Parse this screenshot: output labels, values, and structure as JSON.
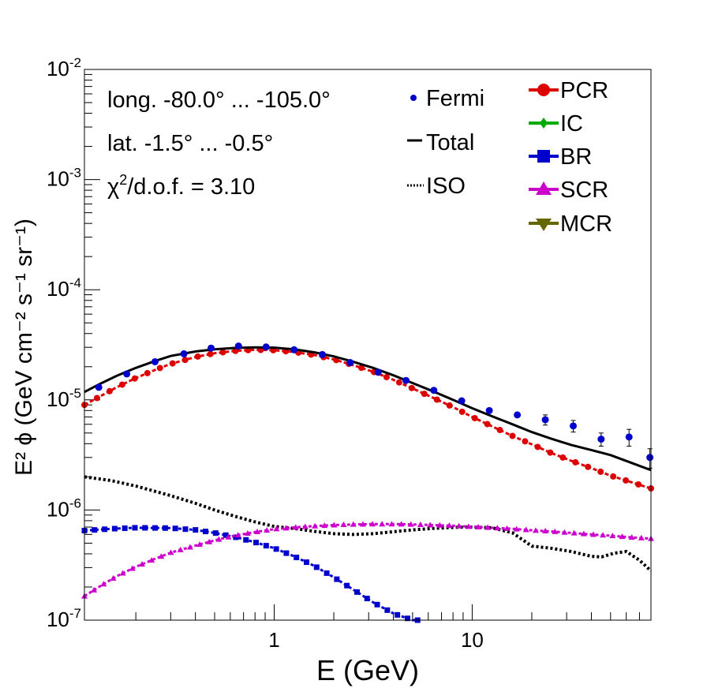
{
  "chart_data": {
    "type": "line",
    "x_scale": "log",
    "y_scale": "log",
    "xlim": [
      0.11,
      80
    ],
    "ylim": [
      1e-07,
      0.01
    ],
    "xlabel": "E (GeV)",
    "ylabel": "E² ϕ (GeV cm⁻² s⁻¹ sr⁻¹)",
    "x_tick_labels": [
      {
        "value": 1,
        "label": "1"
      },
      {
        "value": 10,
        "label": "10"
      }
    ],
    "y_tick_labels": [
      {
        "value": 1e-07,
        "base": "10",
        "exp": "-7"
      },
      {
        "value": 1e-06,
        "base": "10",
        "exp": "-6"
      },
      {
        "value": 1e-05,
        "base": "10",
        "exp": "-5"
      },
      {
        "value": 0.0001,
        "base": "10",
        "exp": "-4"
      },
      {
        "value": 0.001,
        "base": "10",
        "exp": "-3"
      },
      {
        "value": 0.01,
        "base": "10",
        "exp": "-2"
      }
    ],
    "annotations": {
      "longitude": "long. -80.0° ... -105.0°",
      "latitude": "lat. -1.5° ... -0.5°",
      "chi2_prefix": "χ",
      "chi2_exp": "2",
      "chi2_suffix": "/d.o.f. = 3.10"
    },
    "legend_left": [
      {
        "name": "Fermi",
        "marker": "dot"
      },
      {
        "name": "Total",
        "marker": "solid-line"
      },
      {
        "name": "ISO",
        "marker": "dotted-line"
      }
    ],
    "legend_right": [
      {
        "name": "PCR",
        "color": "#dd0000",
        "marker": "circle"
      },
      {
        "name": "IC",
        "color": "#00aa00",
        "marker": "diamond"
      },
      {
        "name": "BR",
        "color": "#0000cc",
        "marker": "square"
      },
      {
        "name": "SCR",
        "color": "#cc00cc",
        "marker": "triangle-up"
      },
      {
        "name": "MCR",
        "color": "#666600",
        "marker": "triangle-down"
      }
    ],
    "colors": {
      "fermi": "#0000cc",
      "total": "#000000",
      "iso": "#000000",
      "pcr": "#dd0000",
      "br": "#0000cc",
      "scr": "#cc00cc"
    },
    "fermi": {
      "x": [
        0.13,
        0.18,
        0.25,
        0.35,
        0.48,
        0.66,
        0.91,
        1.26,
        1.75,
        2.42,
        3.35,
        4.63,
        6.4,
        8.85,
        12.2,
        16.9,
        23.4,
        32.4,
        44.8,
        62.0,
        79.0
      ],
      "y": [
        1.3e-05,
        1.72e-05,
        2.22e-05,
        2.62e-05,
        2.95e-05,
        3.08e-05,
        3.02e-05,
        2.85e-05,
        2.58e-05,
        2.18e-05,
        1.78e-05,
        1.5e-05,
        1.22e-05,
        9.8e-06,
        8e-06,
        7.3e-06,
        6.6e-06,
        5.8e-06,
        4.4e-06,
        4.6e-06,
        3e-06
      ],
      "err": [
        0,
        0,
        0,
        0,
        0,
        0,
        0,
        0,
        0,
        0,
        0,
        0,
        0,
        0,
        0,
        0,
        7e-07,
        7e-07,
        6e-07,
        8e-07,
        6e-07
      ]
    },
    "total": {
      "x": [
        0.11,
        0.13,
        0.16,
        0.2,
        0.25,
        0.3,
        0.4,
        0.5,
        0.63,
        0.8,
        1.0,
        1.26,
        1.6,
        2.0,
        2.5,
        3.16,
        4.0,
        5.0,
        6.3,
        8.0,
        10.0,
        12.6,
        16.0,
        20.0,
        25.0,
        31.6,
        40.0,
        50.0,
        63.0,
        80.0
      ],
      "y": [
        1.18e-05,
        1.38e-05,
        1.65e-05,
        1.95e-05,
        2.25e-05,
        2.5e-05,
        2.75e-05,
        2.88e-05,
        2.96e-05,
        3e-05,
        2.98e-05,
        2.88e-05,
        2.7e-05,
        2.48e-05,
        2.22e-05,
        1.95e-05,
        1.67e-05,
        1.42e-05,
        1.2e-05,
        1e-05,
        8.4e-06,
        7.1e-06,
        6e-06,
        5.1e-06,
        4.45e-06,
        3.9e-06,
        3.5e-06,
        3.15e-06,
        2.7e-06,
        2.3e-06
      ]
    },
    "pcr": {
      "x": [
        0.11,
        0.13,
        0.16,
        0.2,
        0.25,
        0.3,
        0.4,
        0.5,
        0.63,
        0.8,
        1.0,
        1.26,
        1.6,
        2.0,
        2.5,
        3.16,
        4.0,
        5.0,
        6.3,
        8.0,
        10.0,
        12.6,
        16.0,
        20.0,
        25.0,
        31.6,
        40.0,
        50.0,
        63.0,
        80.0
      ],
      "y": [
        9e-06,
        1.06e-05,
        1.3e-05,
        1.58e-05,
        1.87e-05,
        2.12e-05,
        2.45e-05,
        2.65e-05,
        2.78e-05,
        2.85e-05,
        2.82e-05,
        2.72e-05,
        2.55e-05,
        2.33e-05,
        2.07e-05,
        1.8e-05,
        1.52e-05,
        1.27e-05,
        1.05e-05,
        8.6e-06,
        7e-06,
        5.75e-06,
        4.7e-06,
        3.95e-06,
        3.3e-06,
        2.8e-06,
        2.4e-06,
        2.05e-06,
        1.8e-06,
        1.57e-06
      ]
    },
    "iso": {
      "x": [
        0.11,
        0.15,
        0.2,
        0.3,
        0.4,
        0.5,
        0.63,
        0.8,
        1.0,
        1.26,
        1.6,
        2.0,
        2.5,
        3.16,
        4.0,
        5.0,
        6.3,
        8.0,
        10.0,
        12.6,
        16.0,
        20.0,
        25.0,
        31.6,
        40.0,
        45.0,
        52.0,
        60.0,
        70.0,
        80.0
      ],
      "y": [
        2e-06,
        1.85e-06,
        1.65e-06,
        1.35e-06,
        1.15e-06,
        1e-06,
        8.8e-07,
        7.8e-07,
        7.1e-07,
        6.8e-07,
        6.4e-07,
        6.1e-07,
        6e-07,
        6.1e-07,
        6.35e-07,
        6.6e-07,
        6.8e-07,
        6.95e-07,
        7e-07,
        6.9e-07,
        6.2e-07,
        4.7e-07,
        4.5e-07,
        4.2e-07,
        3.8e-07,
        3.75e-07,
        4.05e-07,
        4.2e-07,
        3.5e-07,
        2.8e-07
      ]
    },
    "br": {
      "x": [
        0.11,
        0.15,
        0.2,
        0.3,
        0.4,
        0.5,
        0.63,
        0.8,
        1.0,
        1.26,
        1.6,
        2.0,
        2.5,
        3.16,
        4.0,
        5.0,
        5.3
      ],
      "y": [
        6.5e-07,
        6.75e-07,
        6.9e-07,
        6.85e-07,
        6.6e-07,
        6.2e-07,
        5.7e-07,
        5.1e-07,
        4.5e-07,
        3.8e-07,
        3.1e-07,
        2.45e-07,
        1.9e-07,
        1.45e-07,
        1.15e-07,
        1e-07,
        1e-07
      ]
    },
    "scr": {
      "x": [
        0.11,
        0.13,
        0.16,
        0.2,
        0.25,
        0.3,
        0.4,
        0.5,
        0.63,
        0.8,
        1.0,
        1.26,
        1.6,
        2.0,
        2.5,
        3.16,
        4.0,
        5.0,
        6.3,
        8.0,
        10.0,
        12.6,
        16.0,
        20.0,
        25.0,
        31.6,
        40.0,
        50.0,
        63.0,
        80.0
      ],
      "y": [
        1.65e-07,
        2e-07,
        2.5e-07,
        3.05e-07,
        3.6e-07,
        4.1e-07,
        4.75e-07,
        5.3e-07,
        5.85e-07,
        6.3e-07,
        6.7e-07,
        6.95e-07,
        7.15e-07,
        7.3e-07,
        7.4e-07,
        7.45e-07,
        7.45e-07,
        7.4e-07,
        7.3e-07,
        7.2e-07,
        7.05e-07,
        6.9e-07,
        6.75e-07,
        6.55e-07,
        6.4e-07,
        6.2e-07,
        6e-07,
        5.85e-07,
        5.65e-07,
        5.5e-07
      ]
    }
  }
}
